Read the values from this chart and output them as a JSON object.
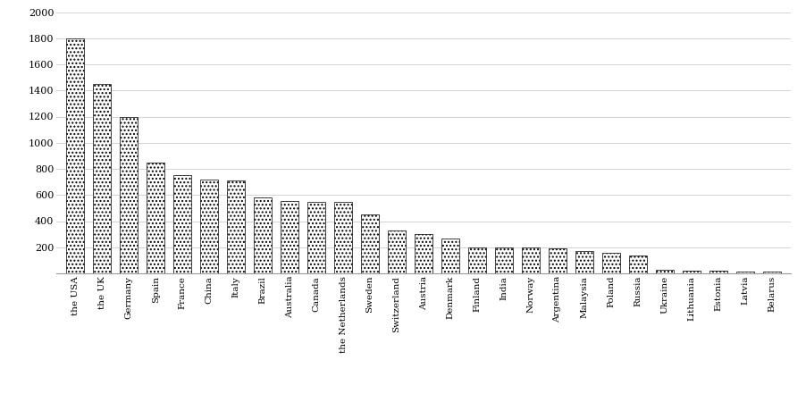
{
  "categories": [
    "the USA",
    "the UK",
    "Germany",
    "Spain",
    "France",
    "China",
    "Italy",
    "Brazil",
    "Australia",
    "Canada",
    "the Netherlands",
    "Sweden",
    "Switzerland",
    "Austria",
    "Denmark",
    "Finland",
    "India",
    "Norway",
    "Argentina",
    "Malaysia",
    "Poland",
    "Russia",
    "Ukraine",
    "Lithuania",
    "Estonia",
    "Latvia",
    "Belarus"
  ],
  "values": [
    1800,
    1450,
    1200,
    850,
    750,
    720,
    710,
    580,
    555,
    545,
    545,
    450,
    330,
    300,
    270,
    200,
    195,
    195,
    190,
    170,
    155,
    135,
    25,
    20,
    18,
    15,
    12
  ],
  "background_color": "#ffffff",
  "ylim": [
    0,
    2000
  ],
  "yticks": [
    0,
    200,
    400,
    600,
    800,
    1000,
    1200,
    1400,
    1600,
    1800,
    2000
  ],
  "grid_color": "#cccccc",
  "hatch": "....",
  "bar_width": 0.65,
  "figwidth": 9.03,
  "figheight": 4.5,
  "dpi": 100
}
